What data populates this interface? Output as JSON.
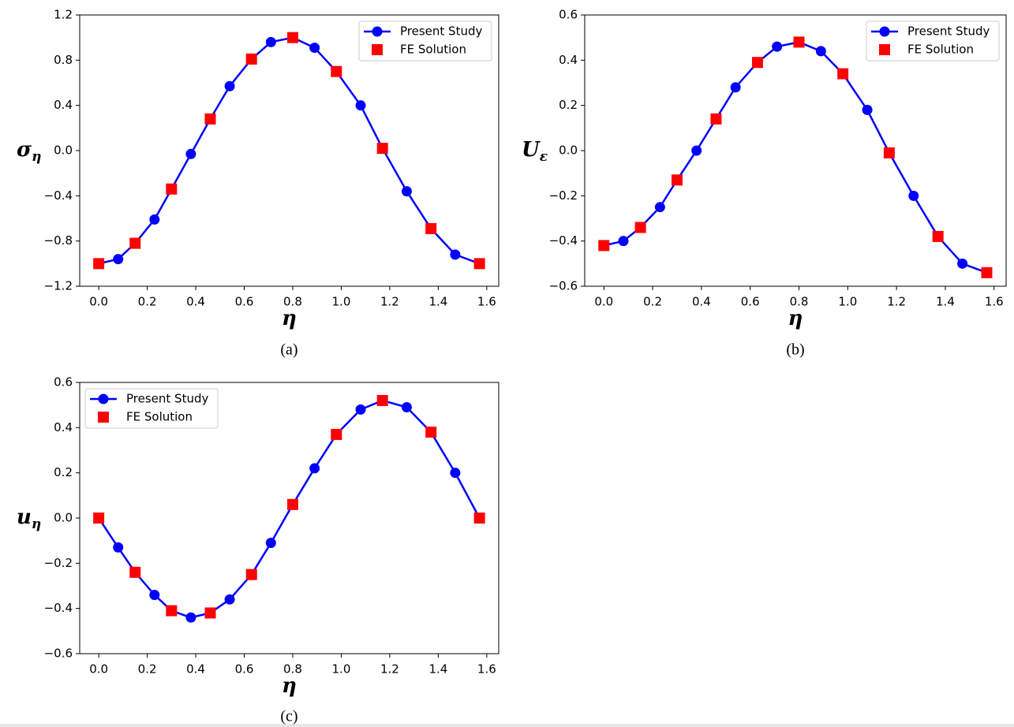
{
  "chart_data": [
    {
      "type": "line",
      "caption": "(a)",
      "ylabel": [
        "σ",
        "η"
      ],
      "xlabel": "η",
      "legend": "upper right",
      "xlim": [
        -0.0785,
        1.6493
      ],
      "ylim": [
        -1.2,
        1.2
      ],
      "xticks": [
        {
          "value": 0,
          "label": "0.0"
        },
        0.2,
        0.4,
        0.6,
        0.8,
        {
          "value": 1,
          "label": "1.0"
        },
        1.2,
        1.4,
        1.6
      ],
      "yticks": [
        {
          "value": -1.2,
          "label": "−1.2"
        },
        {
          "value": -0.8,
          "label": "−0.8"
        },
        {
          "value": -0.4,
          "label": "−0.4"
        },
        {
          "value": 0,
          "label": "0.0"
        },
        0.4,
        0.8,
        1.2
      ],
      "series": [
        {
          "name": "Present Study",
          "color": "#0000ff",
          "marker": "circle",
          "line": true,
          "x": [
            0,
            0.08,
            0.15,
            0.23,
            0.3,
            0.38,
            0.46,
            0.54,
            0.63,
            0.71,
            0.8,
            0.89,
            0.98,
            1.08,
            1.17,
            1.27,
            1.37,
            1.47,
            1.57
          ],
          "values": [
            -1.0,
            -0.96,
            -0.82,
            -0.61,
            -0.34,
            -0.03,
            0.28,
            0.57,
            0.81,
            0.96,
            1.0,
            0.91,
            0.7,
            0.4,
            0.02,
            -0.36,
            -0.69,
            -0.92,
            -1.0
          ]
        },
        {
          "name": "FE Solution",
          "color": "#ff0000",
          "marker": "square",
          "line": false,
          "x": [
            0,
            0.15,
            0.3,
            0.46,
            0.63,
            0.8,
            0.98,
            1.17,
            1.37,
            1.57
          ],
          "values": [
            -1.0,
            -0.82,
            -0.34,
            0.28,
            0.81,
            1.0,
            0.7,
            0.02,
            -0.69,
            -1.0
          ]
        }
      ]
    },
    {
      "type": "line",
      "caption": "(b)",
      "ylabel": [
        "U",
        "ε"
      ],
      "xlabel": "η",
      "legend": "upper right",
      "xlim": [
        -0.0785,
        1.6493
      ],
      "ylim": [
        -0.6,
        0.6
      ],
      "xticks": [
        {
          "value": 0,
          "label": "0.0"
        },
        0.2,
        0.4,
        0.6,
        0.8,
        {
          "value": 1,
          "label": "1.0"
        },
        1.2,
        1.4,
        1.6
      ],
      "yticks": [
        {
          "value": -0.6,
          "label": "−0.6"
        },
        {
          "value": -0.4,
          "label": "−0.4"
        },
        {
          "value": -0.2,
          "label": "−0.2"
        },
        {
          "value": 0,
          "label": "0.0"
        },
        0.2,
        0.4,
        0.6
      ],
      "series": [
        {
          "name": "Present Study",
          "color": "#0000ff",
          "marker": "circle",
          "line": true,
          "x": [
            0,
            0.08,
            0.15,
            0.23,
            0.3,
            0.38,
            0.46,
            0.54,
            0.63,
            0.71,
            0.8,
            0.89,
            0.98,
            1.08,
            1.17,
            1.27,
            1.37,
            1.47,
            1.57
          ],
          "values": [
            -0.42,
            -0.4,
            -0.34,
            -0.25,
            -0.13,
            0.0,
            0.14,
            0.28,
            0.39,
            0.46,
            0.48,
            0.44,
            0.34,
            0.18,
            -0.01,
            -0.2,
            -0.38,
            -0.5,
            -0.54
          ]
        },
        {
          "name": "FE Solution",
          "color": "#ff0000",
          "marker": "square",
          "line": false,
          "x": [
            0,
            0.15,
            0.3,
            0.46,
            0.63,
            0.8,
            0.98,
            1.17,
            1.37,
            1.57
          ],
          "values": [
            -0.42,
            -0.34,
            -0.13,
            0.14,
            0.39,
            0.48,
            0.34,
            -0.01,
            -0.38,
            -0.54
          ]
        }
      ]
    },
    {
      "type": "line",
      "caption": "(c)",
      "ylabel": [
        "u",
        "η"
      ],
      "xlabel": "η",
      "legend": "upper left",
      "xlim": [
        -0.0785,
        1.6493
      ],
      "ylim": [
        -0.6,
        0.6
      ],
      "xticks": [
        {
          "value": 0,
          "label": "0.0"
        },
        0.2,
        0.4,
        0.6,
        0.8,
        {
          "value": 1,
          "label": "1.0"
        },
        1.2,
        1.4,
        1.6
      ],
      "yticks": [
        {
          "value": -0.6,
          "label": "−0.6"
        },
        {
          "value": -0.4,
          "label": "−0.4"
        },
        {
          "value": -0.2,
          "label": "−0.2"
        },
        {
          "value": 0,
          "label": "0.0"
        },
        0.2,
        0.4,
        0.6
      ],
      "series": [
        {
          "name": "Present Study",
          "color": "#0000ff",
          "marker": "circle",
          "line": true,
          "x": [
            0,
            0.08,
            0.15,
            0.23,
            0.3,
            0.38,
            0.46,
            0.54,
            0.63,
            0.71,
            0.8,
            0.89,
            0.98,
            1.08,
            1.17,
            1.27,
            1.37,
            1.47,
            1.57
          ],
          "values": [
            0.0,
            -0.13,
            -0.24,
            -0.34,
            -0.41,
            -0.44,
            -0.42,
            -0.36,
            -0.25,
            -0.11,
            0.06,
            0.22,
            0.37,
            0.48,
            0.52,
            0.49,
            0.38,
            0.2,
            0.0
          ]
        },
        {
          "name": "FE Solution",
          "color": "#ff0000",
          "marker": "square",
          "line": false,
          "x": [
            0,
            0.15,
            0.3,
            0.46,
            0.63,
            0.8,
            0.98,
            1.17,
            1.37,
            1.57
          ],
          "values": [
            0.0,
            -0.24,
            -0.41,
            -0.42,
            -0.25,
            0.06,
            0.37,
            0.52,
            0.38,
            0.0
          ]
        }
      ]
    }
  ]
}
